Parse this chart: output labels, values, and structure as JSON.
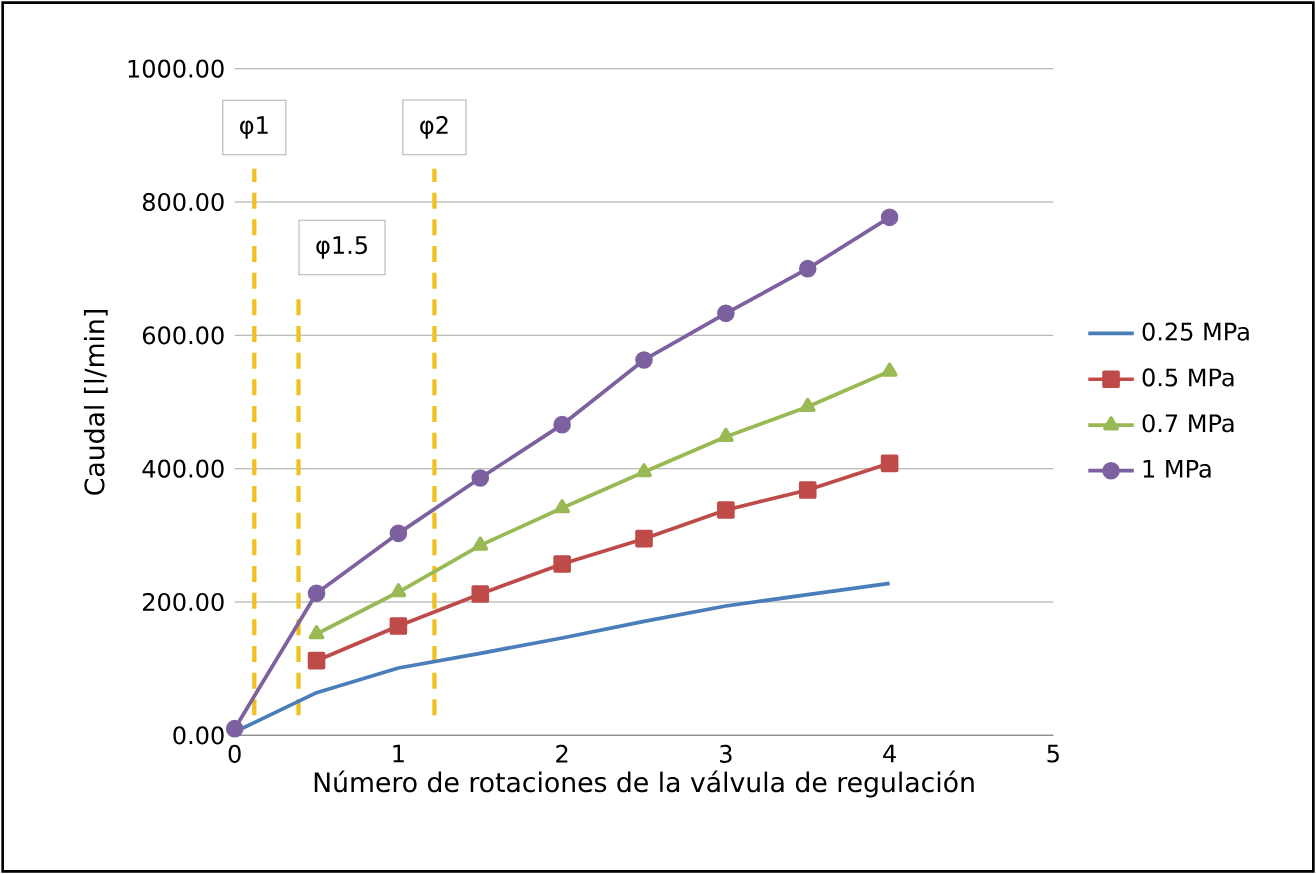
{
  "chart_data": {
    "type": "line",
    "xlabel": "Número de rotaciones de la válvula de regulación",
    "ylabel": "Caudal [l/min]",
    "x": [
      0,
      0.5,
      1,
      1.5,
      2,
      2.5,
      3,
      3.5,
      4
    ],
    "series": [
      {
        "name": "0.25 MPa",
        "color": "#4a7ebb",
        "marker": "none",
        "values": [
          5,
          64,
          101,
          123,
          146,
          171,
          194,
          211,
          228
        ]
      },
      {
        "name": "0.5 MPa",
        "color": "#be4b48",
        "marker": "square",
        "values": [
          null,
          112,
          164,
          212,
          257,
          295,
          338,
          368,
          408
        ]
      },
      {
        "name": "0.7 MPa",
        "color": "#98b954",
        "marker": "triangle",
        "values": [
          null,
          152,
          215,
          285,
          341,
          395,
          448,
          493,
          546
        ]
      },
      {
        "name": "1 MPa",
        "color": "#7d60a0",
        "marker": "circle",
        "values": [
          10,
          213,
          303,
          386,
          466,
          563,
          633,
          700,
          777
        ]
      }
    ],
    "xlim": [
      0,
      5
    ],
    "xticks": [
      0,
      1,
      2,
      3,
      4,
      5
    ],
    "ylim": [
      0,
      1000
    ],
    "yticks": [
      {
        "value": 0,
        "label": "0.00"
      },
      {
        "value": 200,
        "label": "200.00"
      },
      {
        "value": 400,
        "label": "400.00"
      },
      {
        "value": 600,
        "label": "600.00"
      },
      {
        "value": 800,
        "label": "800.00"
      },
      {
        "value": 1000,
        "label": "1000.00"
      }
    ],
    "grid": "y",
    "legend": "right",
    "line_style": "solid",
    "ref_lines": [
      {
        "axis": "x",
        "value": 0.12,
        "label": "φ1",
        "color": "#f0c020",
        "line_style": "dashed"
      },
      {
        "axis": "x",
        "value": 0.39,
        "label": "φ1.5",
        "color": "#f0c020",
        "line_style": "dashed"
      },
      {
        "axis": "x",
        "value": 1.22,
        "label": "φ2",
        "color": "#f0c020",
        "line_style": "dashed"
      }
    ]
  }
}
